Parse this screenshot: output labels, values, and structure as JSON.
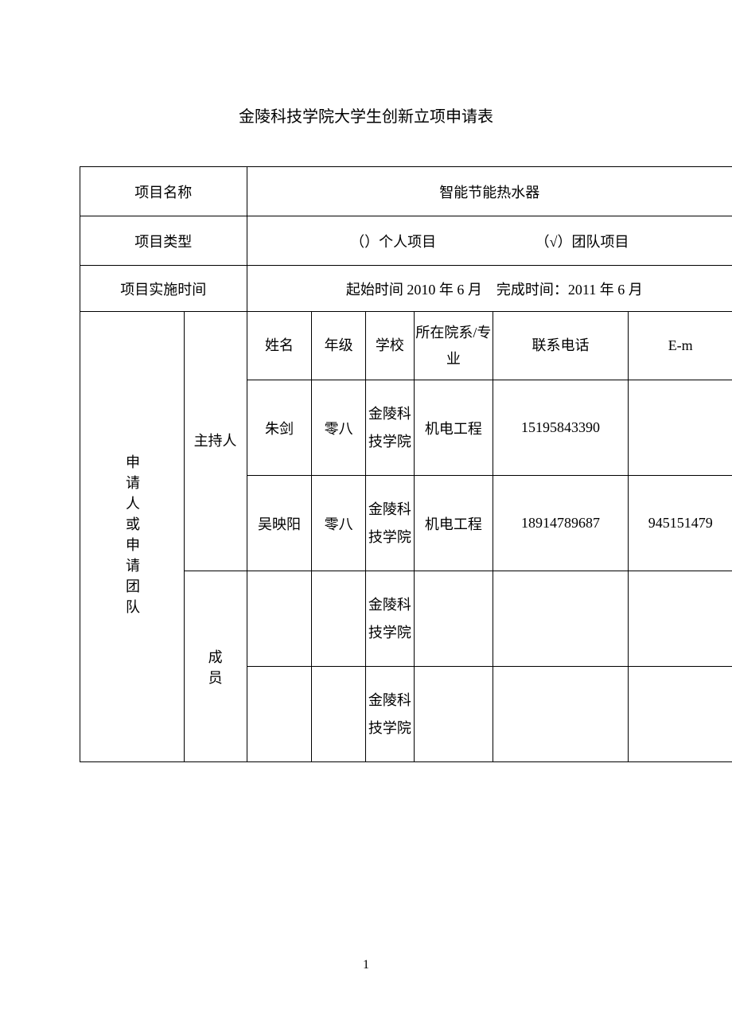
{
  "title": "金陵科技学院大学生创新立项申请表",
  "labels": {
    "project_name": "项目名称",
    "project_type": "项目类型",
    "project_time": "项目实施时间",
    "individual": "（）个人项目",
    "team": "（√）团队项目",
    "applicant_group": "申请人或申请团队",
    "host": "主持人",
    "member": "成　员"
  },
  "project": {
    "name": "智能节能热水器",
    "time_text": "起始时间 2010 年 6 月　完成时间：2011 年 6 月"
  },
  "headers": {
    "name": "姓名",
    "grade": "年级",
    "school": "学校",
    "dept": "所在院系/专业",
    "phone": "联系电话",
    "email": "E-m"
  },
  "people": [
    {
      "name": "朱剑",
      "grade": "零八",
      "school": "金陵科技学院",
      "dept": "机电工程",
      "phone": "15195843390",
      "email": ""
    },
    {
      "name": "吴映阳",
      "grade": "零八",
      "school": "金陵科技学院",
      "dept": "机电工程",
      "phone": "18914789687",
      "email": "945151479"
    },
    {
      "name": "",
      "grade": "",
      "school": "金陵科技学院",
      "dept": "",
      "phone": "",
      "email": ""
    },
    {
      "name": "",
      "grade": "",
      "school": "金陵科技学院",
      "dept": "",
      "phone": "",
      "email": ""
    }
  ],
  "page_number": "1",
  "style": {
    "font_family": "SimSun",
    "text_color": "#000000",
    "border_color": "#000000",
    "background": "#ffffff",
    "title_fontsize": 20,
    "body_fontsize": 18
  }
}
